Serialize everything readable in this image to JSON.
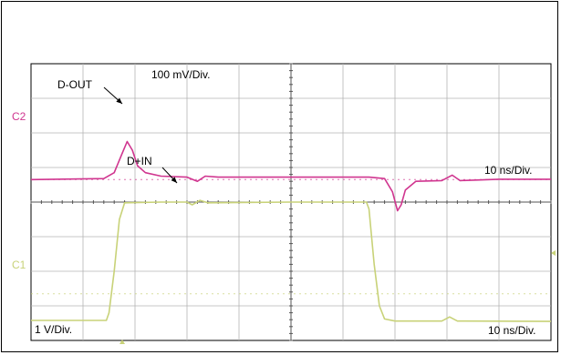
{
  "chart_data": {
    "type": "line",
    "title": "",
    "grid": true,
    "grid_divisions": {
      "x": 10,
      "y": 8
    },
    "colors": {
      "C2": "#d0358f",
      "C1": "#c8d278",
      "grid": "#b4b4b4",
      "frame": "#000000"
    },
    "channels": [
      {
        "id": "C2",
        "label": "C2",
        "scale_text": "100 mV/Div.",
        "time_text": "10 ns/Div."
      },
      {
        "id": "C1",
        "label": "C1",
        "scale_text": "1 V/Div.",
        "time_text": "10 ns/Div."
      }
    ],
    "annotations": [
      {
        "text": "D-OUT",
        "target": "C2"
      },
      {
        "text": "D+IN",
        "target": "C1"
      }
    ],
    "series": [
      {
        "name": "C2",
        "x_unit": "div",
        "y_unit": "div",
        "points": [
          [
            0,
            4.65
          ],
          [
            1.4,
            4.68
          ],
          [
            1.6,
            4.85
          ],
          [
            1.75,
            5.4
          ],
          [
            1.85,
            5.75
          ],
          [
            1.95,
            5.5
          ],
          [
            2.05,
            5.05
          ],
          [
            2.2,
            4.85
          ],
          [
            2.5,
            4.75
          ],
          [
            3.0,
            4.72
          ],
          [
            3.2,
            4.6
          ],
          [
            3.35,
            4.75
          ],
          [
            3.6,
            4.72
          ],
          [
            5.0,
            4.72
          ],
          [
            6.5,
            4.72
          ],
          [
            6.8,
            4.68
          ],
          [
            6.95,
            4.3
          ],
          [
            7.05,
            3.75
          ],
          [
            7.12,
            3.92
          ],
          [
            7.2,
            4.35
          ],
          [
            7.4,
            4.6
          ],
          [
            7.9,
            4.62
          ],
          [
            8.1,
            4.78
          ],
          [
            8.25,
            4.62
          ],
          [
            9.0,
            4.66
          ],
          [
            10,
            4.66
          ]
        ]
      },
      {
        "name": "C1",
        "x_unit": "div",
        "y_unit": "div",
        "points": [
          [
            0,
            0.58
          ],
          [
            1.45,
            0.58
          ],
          [
            1.5,
            0.8
          ],
          [
            1.6,
            2.0
          ],
          [
            1.7,
            3.5
          ],
          [
            1.8,
            3.98
          ],
          [
            2.5,
            4.0
          ],
          [
            3.0,
            4.0
          ],
          [
            3.1,
            3.92
          ],
          [
            3.25,
            4.05
          ],
          [
            3.4,
            3.98
          ],
          [
            5.0,
            4.0
          ],
          [
            6.45,
            4.0
          ],
          [
            6.5,
            3.8
          ],
          [
            6.6,
            2.2
          ],
          [
            6.7,
            1.0
          ],
          [
            6.8,
            0.62
          ],
          [
            7.0,
            0.56
          ],
          [
            7.9,
            0.56
          ],
          [
            8.05,
            0.68
          ],
          [
            8.2,
            0.56
          ],
          [
            10,
            0.55
          ]
        ]
      }
    ]
  }
}
